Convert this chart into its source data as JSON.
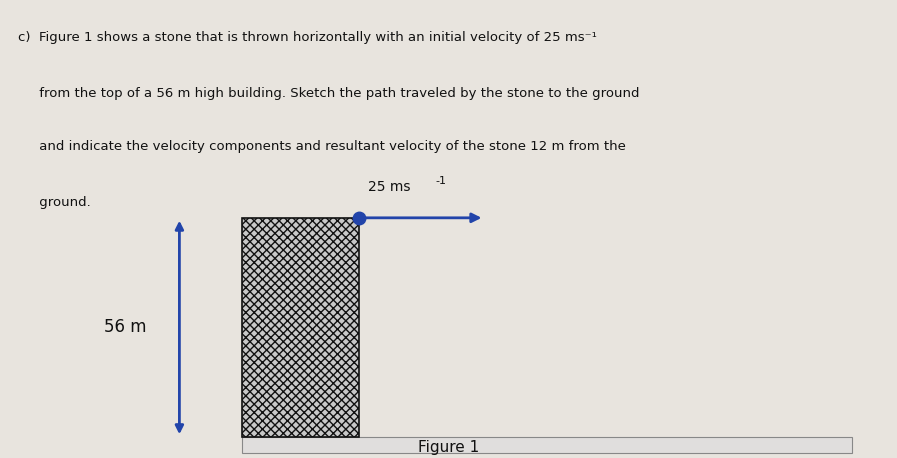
{
  "title_text": "Figure 1",
  "label_56m": "56 m",
  "background_color": "#e8e4de",
  "text_bg_color": "#ccc8c0",
  "figure_bg_color": "#f0eeea",
  "building_hatch": "xxxx",
  "building_face_color": "#c8c8c8",
  "building_edge_color": "#111111",
  "arrow_color": "#2244aa",
  "dot_color": "#2244aa",
  "dim_arrow_color": "#2244aa",
  "ground_face_color": "#e0dedd",
  "ground_edge_color": "#888888",
  "text_color": "#111111",
  "question_lines": [
    "c)  Figure 1 shows a stone that is thrown horizontally with an initial velocity of 25 ms⁻¹",
    "     from the top of a 56 m high building. Sketch the path traveled by the stone to the ground",
    "     and indicate the velocity components and resultant velocity of the stone 12 m from the",
    "     ground."
  ],
  "vel_label": "25 ms",
  "vel_sup": "-1",
  "fig_width": 8.97,
  "fig_height": 4.58
}
